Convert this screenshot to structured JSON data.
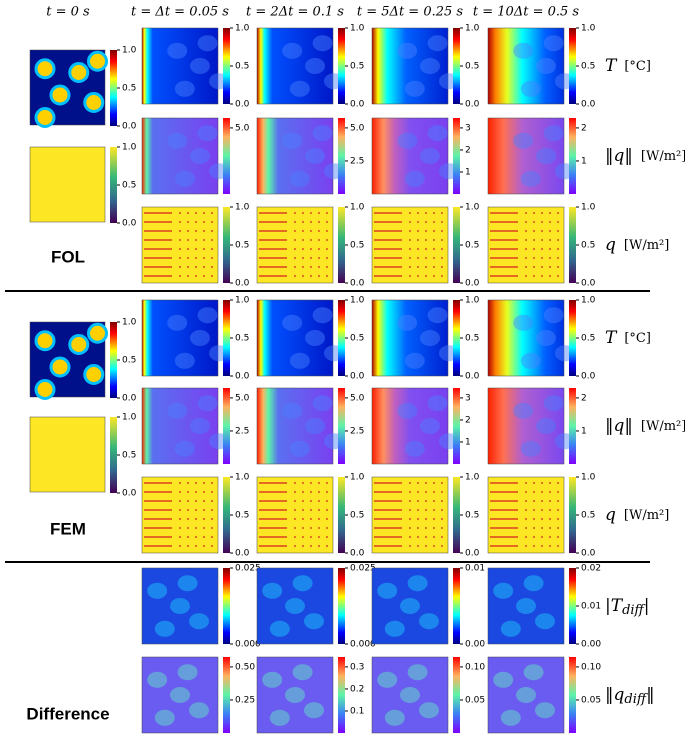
{
  "columns": [
    "t = 0 s",
    "t = Δt = 0.05 s",
    "t = 2Δt = 0.1 s",
    "t = 5Δt = 0.25 s",
    "t = 10Δt = 0.5 s"
  ],
  "sections": [
    {
      "label": "FOL",
      "initial": [
        [
          "0.0",
          "0.5",
          "1.0"
        ],
        [
          "0.0",
          "0.5",
          "1.0"
        ]
      ],
      "rows": [
        {
          "symbol": "T",
          "unit": "[°C]",
          "colormap": "jet",
          "ticks": [
            [
              "0.0",
              "0.5",
              "1.0"
            ],
            [
              "0.0",
              "0.5",
              "1.0"
            ],
            [
              "0.0",
              "0.5",
              "1.0"
            ],
            [
              "0.0",
              "0.5",
              "1.0"
            ]
          ]
        },
        {
          "symbol": "‖q‖",
          "unit": "[W/m²]",
          "colormap": "rainbow",
          "ticks": [
            [
              "5.0"
            ],
            [
              "2.5",
              "5.0"
            ],
            [
              "1",
              "2",
              "3"
            ],
            [
              "1",
              "2"
            ]
          ]
        },
        {
          "symbol": "q",
          "unit": "[W/m²]",
          "colormap": "viridis",
          "ticks": [
            [
              "0.0",
              "0.5",
              "1.0"
            ],
            [
              "0.0",
              "0.5",
              "1.0"
            ],
            [
              "0.0",
              "0.5",
              "1.0"
            ],
            [
              "0.0",
              "0.5",
              "1.0"
            ]
          ]
        }
      ]
    },
    {
      "label": "FEM",
      "initial": [
        [
          "0.0",
          "0.5",
          "1.0"
        ],
        [
          "0.0",
          "0.5",
          "1.0"
        ]
      ],
      "rows": [
        {
          "symbol": "T",
          "unit": "[°C]",
          "colormap": "jet",
          "ticks": [
            [
              "0.0",
              "0.5",
              "1.0"
            ],
            [
              "0.0",
              "0.5",
              "1.0"
            ],
            [
              "0.0",
              "0.5",
              "1.0"
            ],
            [
              "0.0",
              "0.5",
              "1.0"
            ]
          ]
        },
        {
          "symbol": "‖q‖",
          "unit": "[W/m²]",
          "colormap": "rainbow",
          "ticks": [
            [
              "2.5",
              "5.0"
            ],
            [
              "2.5",
              "5.0"
            ],
            [
              "1",
              "2",
              "3"
            ],
            [
              "1",
              "2"
            ]
          ]
        },
        {
          "symbol": "q",
          "unit": "[W/m²]",
          "colormap": "viridis",
          "ticks": [
            [
              "0.0",
              "0.5",
              "1.0"
            ],
            [
              "0.0",
              "0.5",
              "1.0"
            ],
            [
              "0.0",
              "0.5",
              "1.0"
            ],
            [
              "0.0",
              "0.5",
              "1.0"
            ]
          ]
        }
      ]
    },
    {
      "label": "Difference",
      "rows": [
        {
          "symbol": "|T",
          "sub": "diff",
          "close": "|",
          "colormap": "jet",
          "ticks": [
            [
              "0.000",
              "0.025"
            ],
            [
              "0.000",
              "0.025"
            ],
            [
              "0.00",
              "0.01"
            ],
            [
              "0.00",
              "0.01",
              "0.02"
            ]
          ]
        },
        {
          "symbol": "‖q",
          "sub": "diff",
          "close": "‖",
          "colormap": "rainbow",
          "ticks": [
            [
              "0.25",
              "0.50"
            ],
            [
              "0.1",
              "0.2",
              "0.3"
            ],
            [
              "0.05",
              "0.10"
            ],
            [
              "0.05",
              "0.10"
            ]
          ]
        }
      ]
    }
  ]
}
